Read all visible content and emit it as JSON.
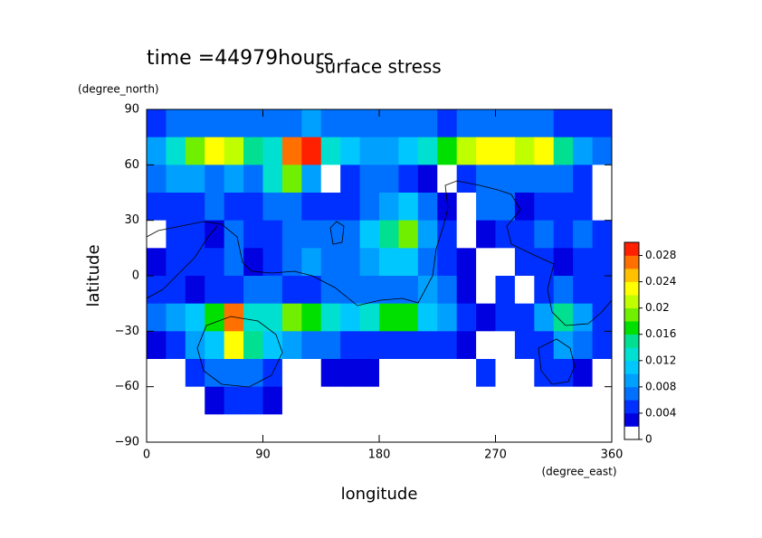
{
  "chart_data": {
    "type": "contourf",
    "time_label": "time =44979hours",
    "title": "surface stress",
    "xlabel": "longitude",
    "ylabel": "latitude",
    "xunit": "(degree_east)",
    "yunit": "(degree_north)",
    "xlim": [
      0,
      360
    ],
    "ylim": [
      -90,
      90
    ],
    "xticks": [
      0,
      90,
      180,
      270,
      360
    ],
    "yticks": [
      {
        "value": -90,
        "label": "−90"
      },
      {
        "value": -60,
        "label": "−60"
      },
      {
        "value": -30,
        "label": "−30"
      },
      0,
      30,
      60,
      90
    ],
    "x": [
      7.5,
      22.5,
      37.5,
      52.5,
      67.5,
      82.5,
      97.5,
      112.5,
      127.5,
      142.5,
      157.5,
      172.5,
      187.5,
      202.5,
      217.5,
      232.5,
      247.5,
      262.5,
      277.5,
      292.5,
      307.5,
      322.5,
      337.5,
      352.5
    ],
    "y": [
      82.5,
      67.5,
      52.5,
      37.5,
      22.5,
      7.5,
      -7.5,
      -22.5,
      -37.5,
      -52.5,
      -67.5,
      -82.5
    ],
    "values": [
      [
        0.005,
        0.006,
        0.006,
        0.006,
        0.007,
        0.006,
        0.006,
        0.007,
        0.008,
        0.007,
        0.006,
        0.006,
        0.006,
        0.006,
        0.006,
        0.005,
        0.006,
        0.006,
        0.006,
        0.006,
        0.006,
        0.005,
        0.005,
        0.005
      ],
      [
        0.008,
        0.012,
        0.018,
        0.022,
        0.02,
        0.014,
        0.012,
        0.026,
        0.028,
        0.012,
        0.01,
        0.008,
        0.008,
        0.01,
        0.012,
        0.016,
        0.02,
        0.022,
        0.022,
        0.02,
        0.022,
        0.014,
        0.008,
        0.006
      ],
      [
        0.006,
        0.008,
        0.008,
        0.006,
        0.008,
        0.006,
        0.012,
        0.018,
        0.008,
        0,
        0.004,
        0.006,
        0.006,
        0.004,
        0.002,
        0,
        0.004,
        0.006,
        0.006,
        0.006,
        0.006,
        0.006,
        0.004,
        0
      ],
      [
        0.004,
        0.005,
        0.005,
        0.006,
        0.004,
        0.004,
        0.006,
        0.006,
        0.004,
        0.004,
        0.005,
        0.006,
        0.008,
        0.01,
        0.006,
        0.002,
        0,
        0.006,
        0.006,
        0.002,
        0.004,
        0.004,
        0.004,
        0
      ],
      [
        0.001,
        0.004,
        0.004,
        0.003,
        0.006,
        0.004,
        0.004,
        0.006,
        0.006,
        0.006,
        0.006,
        0.01,
        0.014,
        0.018,
        0.008,
        0.004,
        0.001,
        0.002,
        0.004,
        0.004,
        0.006,
        0.004,
        0.006,
        0.004
      ],
      [
        0.002,
        0.004,
        0.004,
        0.004,
        0.006,
        0.003,
        0.004,
        0.006,
        0.008,
        0.006,
        0.006,
        0.008,
        0.01,
        0.01,
        0.006,
        0.004,
        0.002,
        0.001,
        0.001,
        0.004,
        0.004,
        0.002,
        0.004,
        0.004
      ],
      [
        0.004,
        0.004,
        0.002,
        0.004,
        0.004,
        0.006,
        0.006,
        0.004,
        0.004,
        0.006,
        0.006,
        0.006,
        0.006,
        0.006,
        0.008,
        0.006,
        0.002,
        0.001,
        0.004,
        0.001,
        0.004,
        0.006,
        0.004,
        0.004
      ],
      [
        0.006,
        0.008,
        0.01,
        0.016,
        0.026,
        0.012,
        0.012,
        0.018,
        0.016,
        0.012,
        0.01,
        0.012,
        0.016,
        0.016,
        0.01,
        0.008,
        0.004,
        0.002,
        0.004,
        0.004,
        0.008,
        0.014,
        0.008,
        0.004
      ],
      [
        0.002,
        0.004,
        0.008,
        0.01,
        0.022,
        0.014,
        0.01,
        0.008,
        0.006,
        0.006,
        0.004,
        0.004,
        0.004,
        0.004,
        0.004,
        0.004,
        0.002,
        0.001,
        0.001,
        0.004,
        0.004,
        0.008,
        0.006,
        0.004
      ],
      [
        0.001,
        0.001,
        0.004,
        0.006,
        0.006,
        0.006,
        0.004,
        0.001,
        0.001,
        0.002,
        0.002,
        0.002,
        0.001,
        0.001,
        0.001,
        0.001,
        0.001,
        0.004,
        0.001,
        0.001,
        0.004,
        0.004,
        0.002,
        0.001
      ],
      [
        0,
        0,
        0,
        0.002,
        0.004,
        0.004,
        0.002,
        0,
        0,
        0,
        0,
        0,
        0,
        0,
        0.001,
        0,
        0,
        0,
        0,
        0,
        0,
        0,
        0,
        0
      ],
      [
        0,
        0,
        0,
        0,
        0,
        0,
        0,
        0,
        0,
        0,
        0,
        0,
        0,
        0,
        0,
        0,
        0,
        0,
        0,
        0,
        0,
        0,
        0,
        0
      ]
    ],
    "colorbar": {
      "levels": [
        0,
        0.002,
        0.004,
        0.006,
        0.008,
        0.01,
        0.012,
        0.014,
        0.016,
        0.018,
        0.02,
        0.022,
        0.024,
        0.026,
        0.028,
        0.03
      ],
      "colors": [
        "#ffffff",
        "#0000e0",
        "#0030ff",
        "#0070ff",
        "#00a0ff",
        "#00c8ff",
        "#00e0d0",
        "#00e090",
        "#00e000",
        "#70f000",
        "#c0ff00",
        "#ffff00",
        "#ffc000",
        "#ff7000",
        "#ff2000"
      ],
      "ticks": [
        0,
        0.004,
        0.008,
        0.012,
        0.016,
        0.02,
        0.024,
        0.028
      ]
    }
  }
}
